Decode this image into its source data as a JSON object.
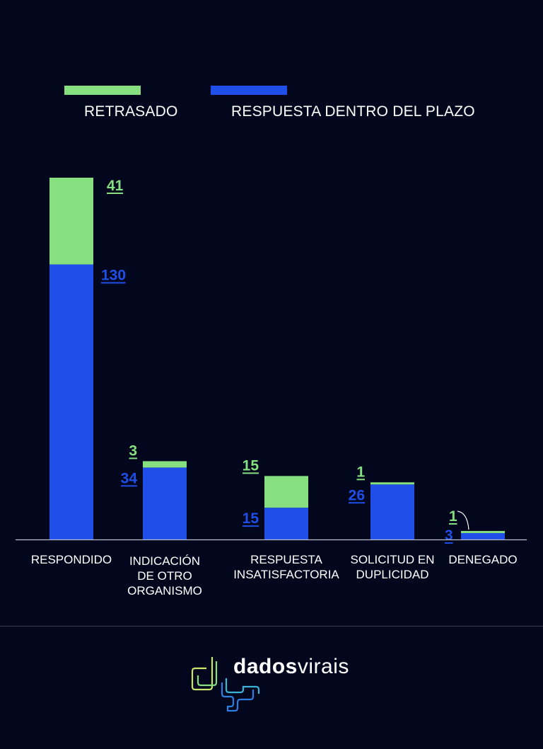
{
  "legend": {
    "delayed_label": "RETRASADO",
    "ontime_label": "RESPUESTA DENTRO DEL PLAZO"
  },
  "colors": {
    "background": "#03071e",
    "delayed": "#86e07f",
    "ontime": "#1f4fe8",
    "axis": "#b8bcc8"
  },
  "chart_data": {
    "type": "bar",
    "stacked": true,
    "categories": [
      [
        "RESPONDIDO"
      ],
      [
        "INDICACIÓN",
        "DE OTRO",
        "ORGANISMO"
      ],
      [
        "RESPUESTA",
        "INSATISFACTORIA"
      ],
      [
        "SOLICITUD EN",
        "DUPLICIDAD"
      ],
      [
        "DENEGADO"
      ]
    ],
    "series": [
      {
        "name": "RESPUESTA DENTRO DEL PLAZO",
        "values": [
          130,
          34,
          15,
          26,
          3
        ]
      },
      {
        "name": "RETRASADO",
        "values": [
          41,
          3,
          15,
          1,
          1
        ]
      }
    ],
    "ylim": [
      0,
      171
    ],
    "grid": false,
    "legend_position": "top"
  },
  "brand": {
    "bold": "dados",
    "light": "virais"
  }
}
